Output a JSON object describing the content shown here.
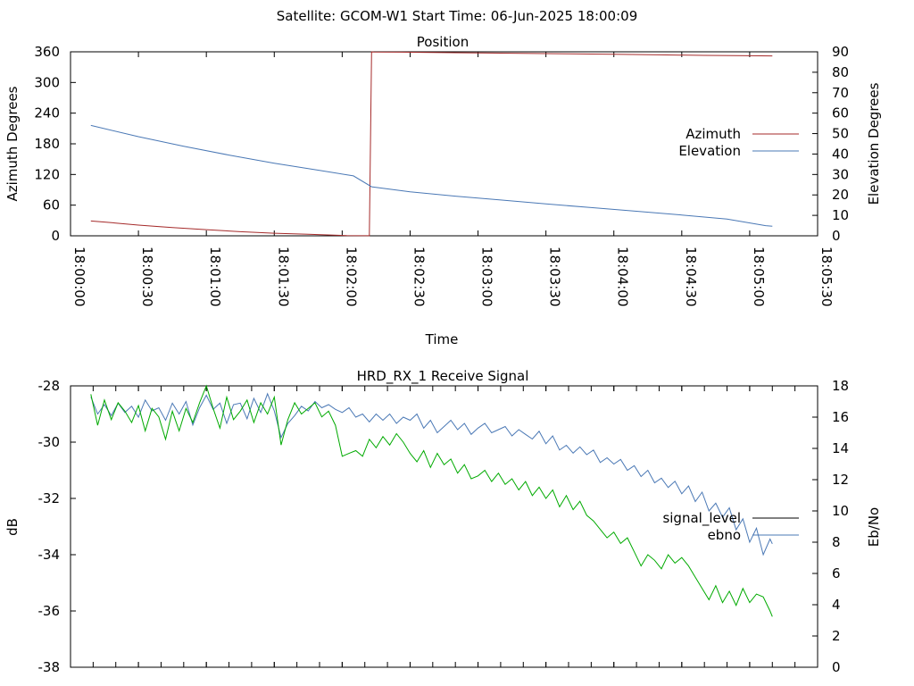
{
  "header": {
    "title": "Satellite: GCOM-W1    Start Time: 06-Jun-2025 18:00:09"
  },
  "chart_data": [
    {
      "type": "line",
      "title": "Position",
      "xlabel": "Time",
      "ylabel": "Azimuth Degrees",
      "y2label": "Elevation Degrees",
      "xlim": [
        0,
        330
      ],
      "ylim": [
        0,
        360
      ],
      "y2lim": [
        0,
        90
      ],
      "x_ticks": [
        0,
        30,
        60,
        90,
        120,
        150,
        180,
        210,
        240,
        270,
        300,
        330
      ],
      "x_tick_labels": [
        "18:00:00",
        "18:00:30",
        "18:01:00",
        "18:01:30",
        "18:02:00",
        "18:02:30",
        "18:03:00",
        "18:03:30",
        "18:04:00",
        "18:04:30",
        "18:05:00",
        "18:05:30"
      ],
      "y_ticks": [
        0,
        60,
        120,
        180,
        240,
        300,
        360
      ],
      "y2_ticks": [
        0,
        10,
        20,
        30,
        40,
        50,
        60,
        70,
        80,
        90
      ],
      "legend_position": "right",
      "series": [
        {
          "name": "Azimuth",
          "axis": "left",
          "color": "#a52a2a",
          "points": [
            [
              9,
              29
            ],
            [
              20,
              25
            ],
            [
              30,
              21
            ],
            [
              45,
              16
            ],
            [
              60,
              12
            ],
            [
              75,
              8
            ],
            [
              90,
              5
            ],
            [
              105,
              3
            ],
            [
              115,
              1.5
            ],
            [
              122,
              0.6
            ],
            [
              132,
              0.1
            ],
            [
              133,
              359.9
            ],
            [
              134,
              359.6
            ],
            [
              146,
              359.3
            ],
            [
              160,
              358.6
            ],
            [
              180,
              357.7
            ],
            [
              200,
              356.9
            ],
            [
              220,
              356.0
            ],
            [
              240,
              355.1
            ],
            [
              260,
              354.0
            ],
            [
              280,
              353.0
            ],
            [
              300,
              352.3
            ],
            [
              310,
              352.0
            ]
          ]
        },
        {
          "name": "Elevation",
          "axis": "right",
          "color": "#4a78b5",
          "points": [
            [
              9,
              54
            ],
            [
              30,
              48.5
            ],
            [
              50,
              43.8
            ],
            [
              70,
              39.5
            ],
            [
              90,
              35.5
            ],
            [
              110,
              32
            ],
            [
              125,
              29.3
            ],
            [
              133,
              24
            ],
            [
              150,
              21.5
            ],
            [
              170,
              19.4
            ],
            [
              190,
              17.5
            ],
            [
              210,
              15.6
            ],
            [
              230,
              13.8
            ],
            [
              250,
              12.0
            ],
            [
              270,
              10.2
            ],
            [
              290,
              8.2
            ],
            [
              307,
              5.0
            ],
            [
              310,
              4.7
            ]
          ]
        }
      ]
    },
    {
      "type": "line",
      "title": "HRD_RX_1 Receive Signal",
      "xlabel": "",
      "ylabel": "dB",
      "y2label": "Eb/No",
      "xlim": [
        0,
        330
      ],
      "ylim": [
        -38,
        -28
      ],
      "y2lim": [
        0,
        18
      ],
      "y_ticks": [
        -38,
        -36,
        -34,
        -32,
        -30,
        -28
      ],
      "y2_ticks": [
        0,
        2,
        4,
        6,
        8,
        10,
        12,
        14,
        16,
        18
      ],
      "legend_position": "right",
      "series": [
        {
          "name": "signal_level",
          "axis": "left",
          "color": "#000000",
          "points": []
        },
        {
          "name": "ebno",
          "axis": "right",
          "color": "#4a78b5",
          "points": [
            [
              9,
              17.3
            ],
            [
              12,
              16.2
            ],
            [
              15,
              16.8
            ],
            [
              18,
              16.1
            ],
            [
              21,
              16.9
            ],
            [
              24,
              16.3
            ],
            [
              27,
              16.7
            ],
            [
              30,
              16.0
            ],
            [
              33,
              17.1
            ],
            [
              36,
              16.4
            ],
            [
              39,
              16.6
            ],
            [
              42,
              15.8
            ],
            [
              45,
              16.9
            ],
            [
              48,
              16.2
            ],
            [
              51,
              17.0
            ],
            [
              54,
              15.5
            ],
            [
              57,
              16.6
            ],
            [
              60,
              17.4
            ],
            [
              63,
              16.5
            ],
            [
              66,
              16.9
            ],
            [
              69,
              15.6
            ],
            [
              72,
              16.8
            ],
            [
              75,
              16.9
            ],
            [
              78,
              15.9
            ],
            [
              81,
              17.2
            ],
            [
              84,
              16.3
            ],
            [
              87,
              17.5
            ],
            [
              90,
              16.4
            ],
            [
              93,
              14.7
            ],
            [
              96,
              15.6
            ],
            [
              99,
              16.1
            ],
            [
              102,
              16.7
            ],
            [
              105,
              16.4
            ],
            [
              108,
              17.0
            ],
            [
              111,
              16.6
            ],
            [
              114,
              16.8
            ],
            [
              117,
              16.5
            ],
            [
              120,
              16.3
            ],
            [
              123,
              16.6
            ],
            [
              126,
              16.0
            ],
            [
              129,
              16.2
            ],
            [
              132,
              15.7
            ],
            [
              135,
              16.2
            ],
            [
              138,
              15.8
            ],
            [
              141,
              16.2
            ],
            [
              144,
              15.6
            ],
            [
              147,
              16.0
            ],
            [
              150,
              15.8
            ],
            [
              153,
              16.2
            ],
            [
              156,
              15.3
            ],
            [
              159,
              15.8
            ],
            [
              162,
              15.0
            ],
            [
              165,
              15.4
            ],
            [
              168,
              15.8
            ],
            [
              171,
              15.2
            ],
            [
              174,
              15.6
            ],
            [
              177,
              14.9
            ],
            [
              180,
              15.3
            ],
            [
              183,
              15.6
            ],
            [
              186,
              15.0
            ],
            [
              189,
              15.2
            ],
            [
              192,
              15.4
            ],
            [
              195,
              14.8
            ],
            [
              198,
              15.2
            ],
            [
              201,
              14.9
            ],
            [
              204,
              14.6
            ],
            [
              207,
              15.1
            ],
            [
              210,
              14.3
            ],
            [
              213,
              14.8
            ],
            [
              216,
              13.9
            ],
            [
              219,
              14.2
            ],
            [
              222,
              13.7
            ],
            [
              225,
              14.1
            ],
            [
              228,
              13.6
            ],
            [
              231,
              13.9
            ],
            [
              234,
              13.1
            ],
            [
              237,
              13.4
            ],
            [
              240,
              13.0
            ],
            [
              243,
              13.3
            ],
            [
              246,
              12.6
            ],
            [
              249,
              12.9
            ],
            [
              252,
              12.2
            ],
            [
              255,
              12.6
            ],
            [
              258,
              11.8
            ],
            [
              261,
              12.1
            ],
            [
              264,
              11.5
            ],
            [
              267,
              11.9
            ],
            [
              270,
              11.1
            ],
            [
              273,
              11.6
            ],
            [
              276,
              10.6
            ],
            [
              279,
              11.2
            ],
            [
              282,
              10.0
            ],
            [
              285,
              10.5
            ],
            [
              288,
              9.6
            ],
            [
              291,
              10.2
            ],
            [
              294,
              8.8
            ],
            [
              297,
              9.5
            ],
            [
              300,
              8.0
            ],
            [
              303,
              8.9
            ],
            [
              306,
              7.2
            ],
            [
              309,
              8.2
            ],
            [
              310,
              7.9
            ]
          ]
        },
        {
          "name": "",
          "axis": "left",
          "color": "#00aa00",
          "points": [
            [
              9,
              -28.3
            ],
            [
              12,
              -29.4
            ],
            [
              15,
              -28.5
            ],
            [
              18,
              -29.2
            ],
            [
              21,
              -28.6
            ],
            [
              24,
              -28.9
            ],
            [
              27,
              -29.3
            ],
            [
              30,
              -28.7
            ],
            [
              33,
              -29.6
            ],
            [
              36,
              -28.8
            ],
            [
              39,
              -29.1
            ],
            [
              42,
              -29.9
            ],
            [
              45,
              -28.9
            ],
            [
              48,
              -29.6
            ],
            [
              51,
              -28.8
            ],
            [
              54,
              -29.3
            ],
            [
              57,
              -28.6
            ],
            [
              60,
              -28.0
            ],
            [
              63,
              -28.8
            ],
            [
              66,
              -29.5
            ],
            [
              69,
              -28.4
            ],
            [
              72,
              -29.2
            ],
            [
              75,
              -28.9
            ],
            [
              78,
              -28.5
            ],
            [
              81,
              -29.3
            ],
            [
              84,
              -28.6
            ],
            [
              87,
              -29.0
            ],
            [
              90,
              -28.4
            ],
            [
              93,
              -30.1
            ],
            [
              96,
              -29.2
            ],
            [
              99,
              -28.6
            ],
            [
              102,
              -29.0
            ],
            [
              105,
              -28.8
            ],
            [
              108,
              -28.6
            ],
            [
              111,
              -29.1
            ],
            [
              114,
              -28.9
            ],
            [
              117,
              -29.4
            ],
            [
              120,
              -30.5
            ],
            [
              123,
              -30.4
            ],
            [
              126,
              -30.3
            ],
            [
              129,
              -30.5
            ],
            [
              132,
              -29.9
            ],
            [
              135,
              -30.2
            ],
            [
              138,
              -29.8
            ],
            [
              141,
              -30.1
            ],
            [
              144,
              -29.7
            ],
            [
              147,
              -30.0
            ],
            [
              150,
              -30.4
            ],
            [
              153,
              -30.7
            ],
            [
              156,
              -30.3
            ],
            [
              159,
              -30.9
            ],
            [
              162,
              -30.4
            ],
            [
              165,
              -30.8
            ],
            [
              168,
              -30.6
            ],
            [
              171,
              -31.1
            ],
            [
              174,
              -30.8
            ],
            [
              177,
              -31.3
            ],
            [
              180,
              -31.2
            ],
            [
              183,
              -31.0
            ],
            [
              186,
              -31.4
            ],
            [
              189,
              -31.1
            ],
            [
              192,
              -31.5
            ],
            [
              195,
              -31.3
            ],
            [
              198,
              -31.7
            ],
            [
              201,
              -31.4
            ],
            [
              204,
              -31.9
            ],
            [
              207,
              -31.6
            ],
            [
              210,
              -32.0
            ],
            [
              213,
              -31.7
            ],
            [
              216,
              -32.3
            ],
            [
              219,
              -31.9
            ],
            [
              222,
              -32.4
            ],
            [
              225,
              -32.1
            ],
            [
              228,
              -32.6
            ],
            [
              231,
              -32.8
            ],
            [
              234,
              -33.1
            ],
            [
              237,
              -33.4
            ],
            [
              240,
              -33.2
            ],
            [
              243,
              -33.6
            ],
            [
              246,
              -33.4
            ],
            [
              249,
              -33.9
            ],
            [
              252,
              -34.4
            ],
            [
              255,
              -34.0
            ],
            [
              258,
              -34.2
            ],
            [
              261,
              -34.5
            ],
            [
              264,
              -34.0
            ],
            [
              267,
              -34.3
            ],
            [
              270,
              -34.1
            ],
            [
              273,
              -34.4
            ],
            [
              276,
              -34.8
            ],
            [
              279,
              -35.2
            ],
            [
              282,
              -35.6
            ],
            [
              285,
              -35.1
            ],
            [
              288,
              -35.7
            ],
            [
              291,
              -35.3
            ],
            [
              294,
              -35.8
            ],
            [
              297,
              -35.2
            ],
            [
              300,
              -35.7
            ],
            [
              303,
              -35.4
            ],
            [
              306,
              -35.5
            ],
            [
              309,
              -36.0
            ],
            [
              310,
              -36.2
            ]
          ]
        }
      ]
    }
  ]
}
